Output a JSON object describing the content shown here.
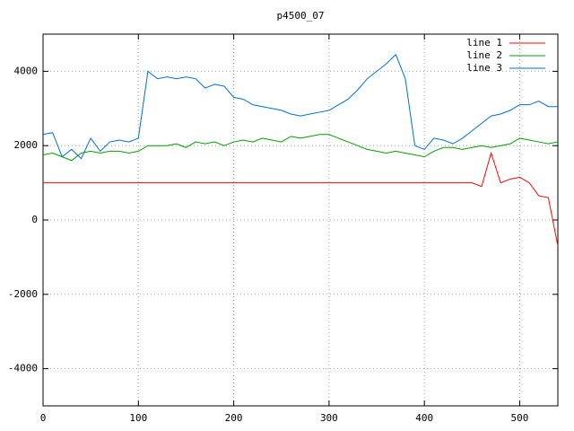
{
  "chart_data": {
    "type": "line",
    "title": "p4500_07",
    "x": [
      0,
      10,
      20,
      30,
      40,
      50,
      60,
      70,
      80,
      90,
      100,
      110,
      120,
      130,
      140,
      150,
      160,
      170,
      180,
      190,
      200,
      210,
      220,
      230,
      240,
      250,
      260,
      270,
      280,
      290,
      300,
      310,
      320,
      330,
      340,
      350,
      360,
      370,
      380,
      390,
      400,
      410,
      420,
      430,
      440,
      450,
      460,
      470,
      480,
      490,
      500,
      510,
      520,
      530,
      540
    ],
    "series": [
      {
        "name": "line 1",
        "color": "#ff0000",
        "values": [
          1000,
          1000,
          1000,
          1000,
          1000,
          1000,
          1000,
          1000,
          1000,
          1000,
          1000,
          1000,
          1000,
          1000,
          1000,
          1000,
          1000,
          1000,
          1000,
          1000,
          1000,
          1000,
          1000,
          1000,
          1000,
          1000,
          1000,
          1000,
          1000,
          1000,
          1000,
          1000,
          1000,
          1000,
          1000,
          1000,
          1000,
          1000,
          1000,
          1000,
          1000,
          1000,
          1000,
          1000,
          1000,
          1000,
          900,
          1800,
          1000,
          1100,
          1150,
          1000,
          650,
          600,
          -700
        ]
      },
      {
        "name": "line 2",
        "color": "#00a000",
        "values": [
          1750,
          1800,
          1700,
          1600,
          1800,
          1850,
          1800,
          1850,
          1850,
          1800,
          1850,
          2000,
          2000,
          2000,
          2050,
          1950,
          2100,
          2050,
          2100,
          2000,
          2100,
          2150,
          2100,
          2200,
          2150,
          2100,
          2250,
          2200,
          2250,
          2300,
          2300,
          2200,
          2100,
          2000,
          1900,
          1850,
          1800,
          1850,
          1800,
          1750,
          1700,
          1850,
          1950,
          1950,
          1900,
          1950,
          2000,
          1950,
          2000,
          2050,
          2200,
          2150,
          2100,
          2050,
          2100
        ]
      },
      {
        "name": "line 3",
        "color": "#0070d0",
        "values": [
          2300,
          2350,
          1700,
          1900,
          1650,
          2200,
          1850,
          2100,
          2150,
          2100,
          2200,
          4000,
          3800,
          3850,
          3800,
          3850,
          3800,
          3550,
          3650,
          3600,
          3300,
          3250,
          3100,
          3050,
          3000,
          2950,
          2850,
          2800,
          2850,
          2900,
          2950,
          3100,
          3250,
          3500,
          3800,
          4000,
          4200,
          4450,
          3800,
          2000,
          1900,
          2200,
          2150,
          2050,
          2200,
          2400,
          2600,
          2800,
          2850,
          2950,
          3100,
          3100,
          3200,
          3050,
          3050
        ]
      }
    ],
    "xlim": [
      0,
      540
    ],
    "ylim": [
      -5000,
      5000
    ],
    "xticks": [
      0,
      100,
      200,
      300,
      400,
      500
    ],
    "yticks": [
      -4000,
      -2000,
      0,
      2000,
      4000
    ],
    "grid": true,
    "legend": "top-right"
  }
}
